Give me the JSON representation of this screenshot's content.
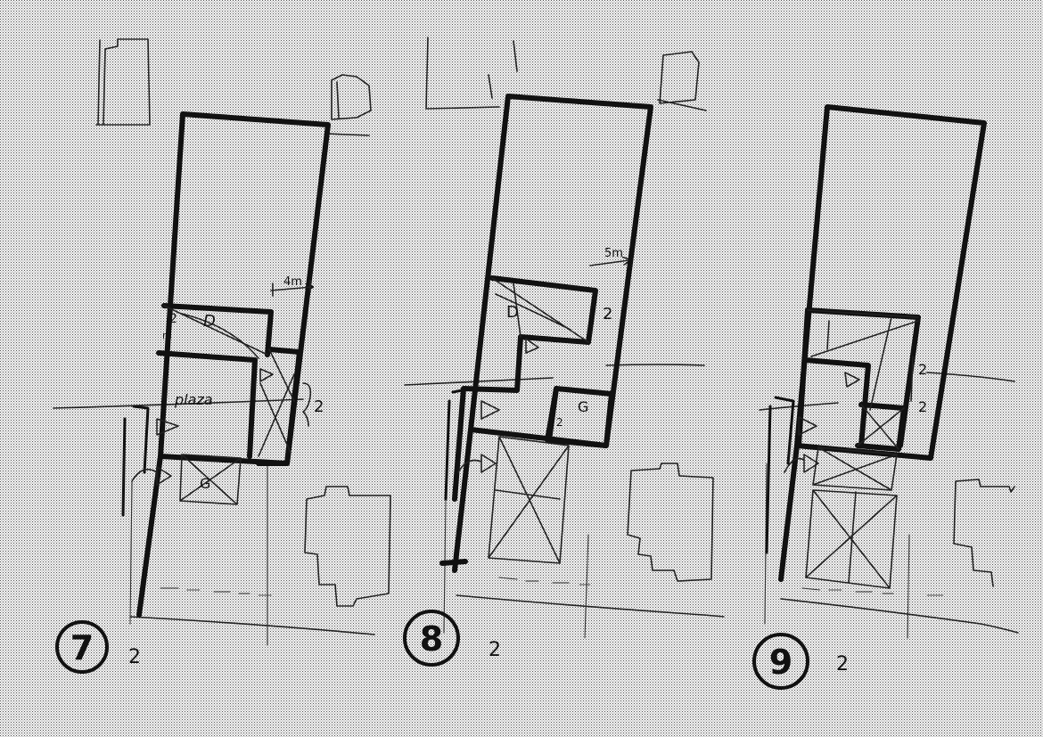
{
  "sketches": [
    {
      "number": "7",
      "note": "2",
      "rooms": {
        "d": "D",
        "plaza": "plaza",
        "g": "G",
        "e": "2"
      },
      "annotations": {
        "dim": "4m",
        "side": "2",
        "small": "m"
      }
    },
    {
      "number": "8",
      "note": "2",
      "rooms": {
        "d": "D",
        "g": "G",
        "e": "2"
      },
      "annotations": {
        "dim": "5m",
        "side": "2"
      }
    },
    {
      "number": "9",
      "note": "2",
      "rooms": {
        "e1": "2",
        "e2": "2"
      },
      "annotations": {}
    }
  ]
}
